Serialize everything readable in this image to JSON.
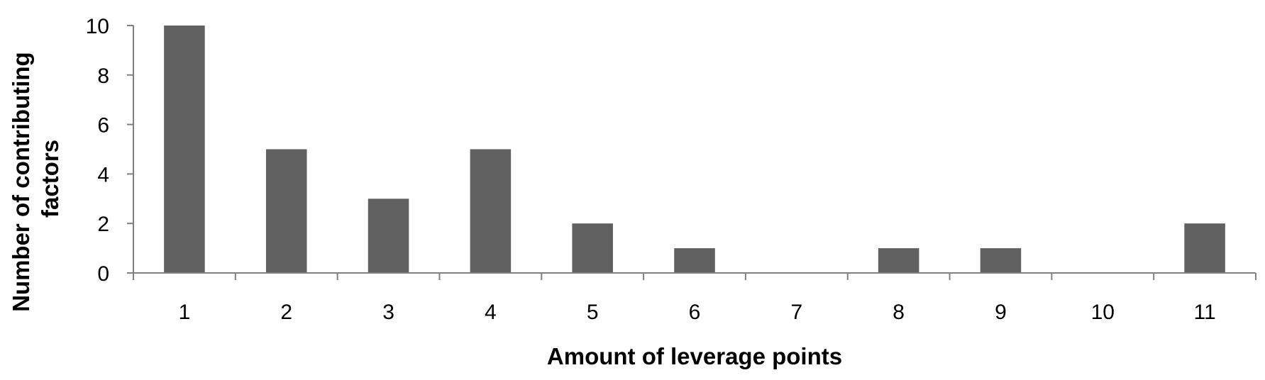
{
  "chart_data": {
    "type": "bar",
    "categories": [
      "1",
      "2",
      "3",
      "4",
      "5",
      "6",
      "7",
      "8",
      "9",
      "10",
      "11"
    ],
    "values": [
      10,
      5,
      3,
      5,
      2,
      1,
      0,
      1,
      1,
      0,
      2
    ],
    "title": "",
    "xlabel": "Amount of leverage points",
    "ylabel_lines": [
      "Number of contributing",
      "factors"
    ],
    "ylim": [
      0,
      10
    ],
    "yticks": [
      "0",
      "2",
      "4",
      "6",
      "8",
      "10"
    ],
    "grid": false,
    "legend": "none",
    "bar_color": "#606060",
    "axis_color": "#808080"
  }
}
